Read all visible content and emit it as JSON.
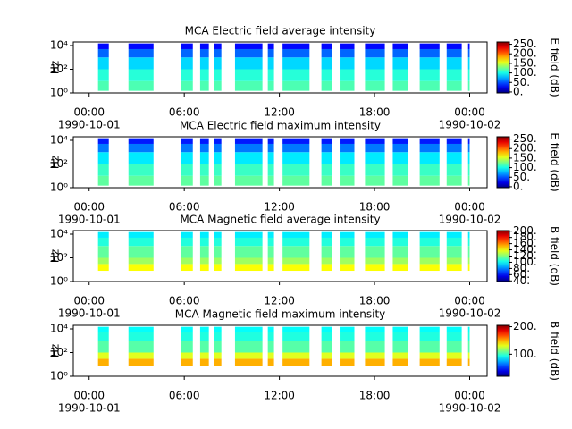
{
  "chart_data": [
    {
      "type": "spectrogram",
      "title": "MCA  Electric field average intensity",
      "ylabel": "Hz",
      "zlabel": "E field (dB)",
      "xlim": [
        -1,
        25.1
      ],
      "xticks": [
        {
          "value": 0,
          "label": "00:00",
          "date": "1990-10-01"
        },
        {
          "value": 6,
          "label": "06:00"
        },
        {
          "value": 12,
          "label": "12:00"
        },
        {
          "value": 18,
          "label": "18:00"
        },
        {
          "value": 24,
          "label": "00:00",
          "date": "1990-10-02"
        }
      ],
      "ylim": [
        1,
        20000
      ],
      "yscale": "log",
      "yticks": [
        {
          "value": 1,
          "label": "10⁰"
        },
        {
          "value": 100,
          "label": "10²"
        },
        {
          "value": 10000,
          "label": "10⁴"
        }
      ],
      "zlim": [
        -5,
        262
      ],
      "zticks": [
        {
          "value": 0,
          "label": "0."
        },
        {
          "value": 50,
          "label": "50."
        },
        {
          "value": 100,
          "label": "100."
        },
        {
          "value": 150,
          "label": "150."
        },
        {
          "value": 200,
          "label": "200."
        },
        {
          "value": 250,
          "label": "250."
        }
      ],
      "segments": [
        [
          0.56,
          1.24
        ],
        [
          2.48,
          4.06
        ],
        [
          5.8,
          6.54
        ],
        [
          7.0,
          7.55
        ],
        [
          7.9,
          8.34
        ],
        [
          9.2,
          10.93
        ],
        [
          11.27,
          11.66
        ],
        [
          12.2,
          13.9
        ],
        [
          14.65,
          15.3
        ],
        [
          15.8,
          16.73
        ],
        [
          17.4,
          18.65
        ],
        [
          19.15,
          20.1
        ],
        [
          20.85,
          22.1
        ],
        [
          22.55,
          23.5
        ],
        [
          23.9,
          24.0
        ]
      ],
      "freq_edges": [
        1.5,
        10,
        100,
        1000,
        5000,
        15000
      ],
      "band_values": [
        115,
        105,
        85,
        55,
        30
      ]
    },
    {
      "type": "spectrogram",
      "title": "MCA  Electric field maximum intensity",
      "ylabel": "Hz",
      "zlabel": "E field (dB)",
      "xlim": [
        -1,
        25.1
      ],
      "xticks": [
        {
          "value": 0,
          "label": "00:00",
          "date": "1990-10-01"
        },
        {
          "value": 6,
          "label": "06:00"
        },
        {
          "value": 12,
          "label": "12:00"
        },
        {
          "value": 18,
          "label": "18:00"
        },
        {
          "value": 24,
          "label": "00:00",
          "date": "1990-10-02"
        }
      ],
      "ylim": [
        1,
        20000
      ],
      "yscale": "log",
      "yticks": [
        {
          "value": 1,
          "label": "10⁰"
        },
        {
          "value": 100,
          "label": "10²"
        },
        {
          "value": 10000,
          "label": "10⁴"
        }
      ],
      "zlim": [
        -5,
        262
      ],
      "zticks": [
        {
          "value": 0,
          "label": "0."
        },
        {
          "value": 50,
          "label": "50."
        },
        {
          "value": 100,
          "label": "100."
        },
        {
          "value": 150,
          "label": "150."
        },
        {
          "value": 200,
          "label": "200."
        },
        {
          "value": 250,
          "label": "250."
        }
      ],
      "segments": [
        [
          0.56,
          1.24
        ],
        [
          2.48,
          4.06
        ],
        [
          5.8,
          6.54
        ],
        [
          7.0,
          7.55
        ],
        [
          7.9,
          8.34
        ],
        [
          9.2,
          10.93
        ],
        [
          11.27,
          11.66
        ],
        [
          12.2,
          13.9
        ],
        [
          14.65,
          15.3
        ],
        [
          15.8,
          16.73
        ],
        [
          17.4,
          18.65
        ],
        [
          19.15,
          20.1
        ],
        [
          20.85,
          22.1
        ],
        [
          22.55,
          23.5
        ],
        [
          23.9,
          24.0
        ]
      ],
      "freq_edges": [
        1.5,
        10,
        100,
        1000,
        5000,
        15000
      ],
      "band_values": [
        120,
        110,
        90,
        60,
        35
      ]
    },
    {
      "type": "spectrogram",
      "title": "MCA  Magnetic field average intensity",
      "ylabel": "Hz",
      "zlabel": "B field (dB)",
      "xlim": [
        -1,
        25.1
      ],
      "xticks": [
        {
          "value": 0,
          "label": "00:00",
          "date": "1990-10-01"
        },
        {
          "value": 6,
          "label": "06:00"
        },
        {
          "value": 12,
          "label": "12:00"
        },
        {
          "value": 18,
          "label": "18:00"
        },
        {
          "value": 24,
          "label": "00:00",
          "date": "1990-10-02"
        }
      ],
      "ylim": [
        1,
        20000
      ],
      "yscale": "log",
      "yticks": [
        {
          "value": 1,
          "label": "10⁰"
        },
        {
          "value": 100,
          "label": "10²"
        },
        {
          "value": 10000,
          "label": "10⁴"
        }
      ],
      "zlim": [
        38,
        202
      ],
      "zticks": [
        {
          "value": 40,
          "label": "40."
        },
        {
          "value": 60,
          "label": "60."
        },
        {
          "value": 80,
          "label": "80."
        },
        {
          "value": 100,
          "label": "100."
        },
        {
          "value": 120,
          "label": "120."
        },
        {
          "value": 140,
          "label": "140."
        },
        {
          "value": 160,
          "label": "160."
        },
        {
          "value": 180,
          "label": "180."
        },
        {
          "value": 200,
          "label": "200."
        }
      ],
      "segments": [
        [
          0.56,
          1.24
        ],
        [
          2.48,
          4.06
        ],
        [
          5.8,
          6.54
        ],
        [
          7.0,
          7.55
        ],
        [
          7.9,
          8.34
        ],
        [
          9.2,
          10.93
        ],
        [
          11.27,
          11.66
        ],
        [
          12.2,
          13.9
        ],
        [
          14.65,
          15.3
        ],
        [
          15.8,
          16.73
        ],
        [
          17.4,
          18.65
        ],
        [
          19.15,
          20.1
        ],
        [
          20.85,
          22.1
        ],
        [
          22.55,
          23.5
        ],
        [
          23.9,
          24.0
        ]
      ],
      "freq_edges": [
        8,
        30,
        100,
        1000,
        5000,
        15000
      ],
      "band_values": [
        140,
        125,
        115,
        105,
        97
      ]
    },
    {
      "type": "spectrogram",
      "title": "MCA  Magnetic field maximum intensity",
      "ylabel": "Hz",
      "zlabel": "B field (dB)",
      "xlim": [
        -1,
        25.1
      ],
      "xticks": [
        {
          "value": 0,
          "label": "00:00",
          "date": "1990-10-01"
        },
        {
          "value": 6,
          "label": "06:00"
        },
        {
          "value": 12,
          "label": "12:00"
        },
        {
          "value": 18,
          "label": "18:00"
        },
        {
          "value": 24,
          "label": "00:00",
          "date": "1990-10-02"
        }
      ],
      "ylim": [
        1,
        20000
      ],
      "yscale": "log",
      "yticks": [
        {
          "value": 1,
          "label": "10⁰"
        },
        {
          "value": 100,
          "label": "10²"
        },
        {
          "value": 10000,
          "label": "10⁴"
        }
      ],
      "zlim": [
        20,
        205
      ],
      "zticks": [
        {
          "value": 100,
          "label": "100."
        },
        {
          "value": 200,
          "label": "200."
        }
      ],
      "segments": [
        [
          0.56,
          1.24
        ],
        [
          2.48,
          4.06
        ],
        [
          5.8,
          6.54
        ],
        [
          7.0,
          7.55
        ],
        [
          7.9,
          8.34
        ],
        [
          9.2,
          10.93
        ],
        [
          11.27,
          11.66
        ],
        [
          12.2,
          13.9
        ],
        [
          14.65,
          15.3
        ],
        [
          15.8,
          16.73
        ],
        [
          17.4,
          18.65
        ],
        [
          19.15,
          20.1
        ],
        [
          20.85,
          22.1
        ],
        [
          22.55,
          23.5
        ],
        [
          23.9,
          24.0
        ]
      ],
      "freq_edges": [
        8,
        30,
        100,
        1000,
        5000,
        15000
      ],
      "band_values": [
        150,
        130,
        105,
        95,
        90
      ]
    }
  ]
}
